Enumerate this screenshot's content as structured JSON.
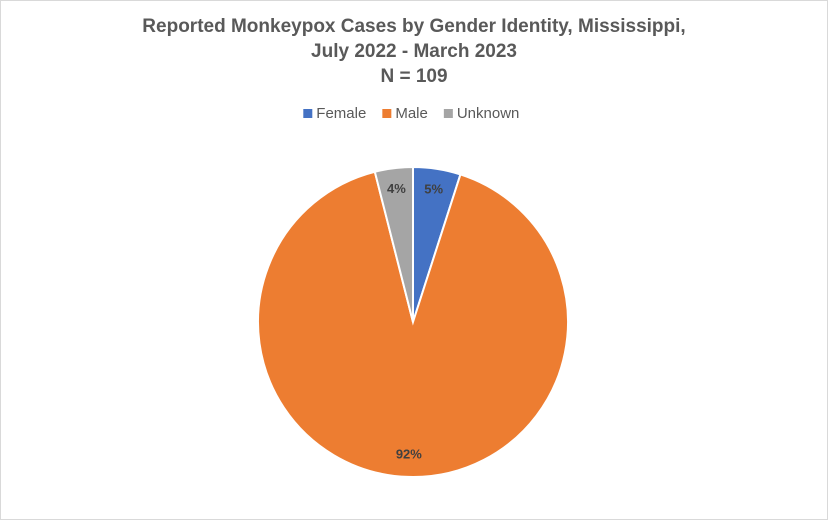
{
  "chart_data": {
    "type": "pie",
    "title": [
      "Reported Monkeypox Cases by Gender Identity, Mississippi,",
      "July 2022 - March 2023"
    ],
    "subtitle": "N = 109",
    "categories": [
      "Female",
      "Male",
      "Unknown"
    ],
    "values": [
      5,
      92,
      4
    ],
    "value_labels": [
      "5%",
      "92%",
      "4%"
    ],
    "colors": [
      "#4472c4",
      "#ed7d31",
      "#a5a5a5"
    ],
    "legend": "top"
  }
}
